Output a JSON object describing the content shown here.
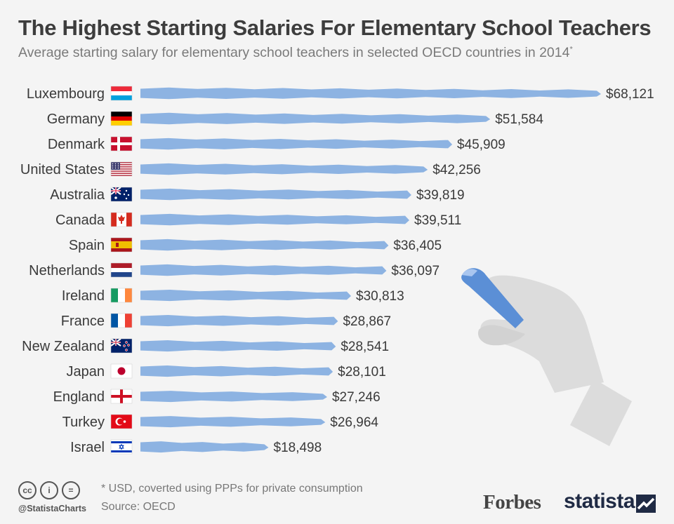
{
  "header": {
    "title": "The Highest Starting Salaries For Elementary School Teachers",
    "subtitle": "Average starting salary for elementary school teachers in selected OECD countries in 2014",
    "subtitle_mark": "*"
  },
  "chart_data": {
    "type": "bar",
    "orientation": "horizontal",
    "categories": [
      "Luxembourg",
      "Germany",
      "Denmark",
      "United States",
      "Australia",
      "Canada",
      "Spain",
      "Netherlands",
      "Ireland",
      "France",
      "New Zealand",
      "Japan",
      "England",
      "Turkey",
      "Israel"
    ],
    "values": [
      68121,
      51584,
      45909,
      42256,
      39819,
      39511,
      36405,
      36097,
      30813,
      28867,
      28541,
      28101,
      27246,
      26964,
      18498
    ],
    "value_labels": [
      "$68,121",
      "$51,584",
      "$45,909",
      "$42,256",
      "$39,819",
      "$39,511",
      "$36,405",
      "$36,097",
      "$30,813",
      "$28,867",
      "$28,541",
      "$28,101",
      "$27,246",
      "$26,964",
      "$18,498"
    ],
    "flags": [
      "luxembourg-flag-icon",
      "germany-flag-icon",
      "denmark-flag-icon",
      "united-states-flag-icon",
      "australia-flag-icon",
      "canada-flag-icon",
      "spain-flag-icon",
      "netherlands-flag-icon",
      "ireland-flag-icon",
      "france-flag-icon",
      "new-zealand-flag-icon",
      "japan-flag-icon",
      "england-flag-icon",
      "turkey-flag-icon",
      "israel-flag-icon"
    ],
    "xlim": [
      0,
      68121
    ],
    "grid": false,
    "legend": "none",
    "bar_color": "#8db3e2"
  },
  "footer": {
    "note": "* USD, coverted using PPPs for private consumption",
    "source": "Source: OECD",
    "handle": "@StatistaCharts",
    "forbes": "Forbes",
    "statista": "statista"
  },
  "colors": {
    "bar": "#8db3e2",
    "title": "#3d3d3d",
    "subtitle": "#7a7a7a",
    "hand": "#d9d9d9",
    "chalk": "#5b8fd6"
  }
}
